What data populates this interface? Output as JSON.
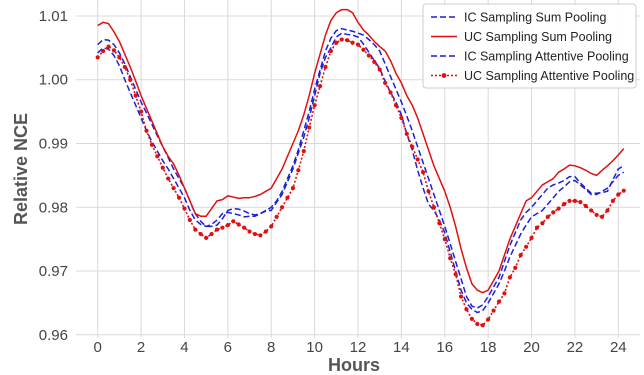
{
  "chart_data": {
    "type": "line",
    "xlabel": "Hours",
    "ylabel": "Relative NCE",
    "xlim": [
      -1,
      25
    ],
    "ylim": [
      0.9595,
      1.0125
    ],
    "x_ticks": [
      0,
      2,
      4,
      6,
      8,
      10,
      12,
      14,
      16,
      18,
      20,
      22,
      24
    ],
    "y_ticks": [
      0.96,
      0.97,
      0.98,
      0.99,
      1.0,
      1.01
    ],
    "y_tick_labels": [
      "0.96",
      "0.97",
      "0.98",
      "0.99",
      "1.00",
      "1.01"
    ],
    "grid": true,
    "legend_position": "top-right",
    "series": [
      {
        "name": "IC Sampling Sum Pooling",
        "color": "#1f1fd6",
        "style": "dashed",
        "x": [
          0,
          0.25,
          0.5,
          0.75,
          1,
          1.25,
          1.5,
          1.75,
          2,
          2.25,
          2.5,
          2.75,
          3,
          3.25,
          3.5,
          3.75,
          4,
          4.25,
          4.5,
          4.75,
          5,
          5.25,
          5.5,
          5.75,
          6,
          6.25,
          6.5,
          6.75,
          7,
          7.25,
          7.5,
          7.75,
          8,
          8.25,
          8.5,
          8.75,
          9,
          9.25,
          9.5,
          9.75,
          10,
          10.25,
          10.5,
          10.75,
          11,
          11.25,
          11.5,
          11.75,
          12,
          12.25,
          12.5,
          12.75,
          13,
          13.25,
          13.5,
          13.75,
          14,
          14.25,
          14.5,
          14.75,
          15,
          15.25,
          15.5,
          15.75,
          16,
          16.25,
          16.5,
          16.75,
          17,
          17.25,
          17.5,
          17.75,
          18,
          18.25,
          18.5,
          18.75,
          19,
          19.25,
          19.5,
          19.75,
          20,
          20.25,
          20.5,
          20.75,
          21,
          21.25,
          21.5,
          21.75,
          22,
          22.25,
          22.5,
          22.75,
          23,
          23.25,
          23.5,
          23.75,
          24,
          24.25
        ],
        "y": [
          1.0055,
          1.0063,
          1.0062,
          1.0055,
          1.0042,
          1.0025,
          1.0005,
          0.9985,
          0.9965,
          0.9948,
          0.993,
          0.9912,
          0.9895,
          0.9878,
          0.986,
          0.9845,
          0.983,
          0.981,
          0.979,
          0.9778,
          0.977,
          0.977,
          0.9772,
          0.9782,
          0.9795,
          0.9798,
          0.9797,
          0.9794,
          0.979,
          0.9788,
          0.979,
          0.9794,
          0.98,
          0.981,
          0.9825,
          0.9845,
          0.9865,
          0.989,
          0.992,
          0.995,
          0.9985,
          1.0015,
          1.0045,
          1.0065,
          1.0077,
          1.008,
          1.0078,
          1.0076,
          1.0073,
          1.007,
          1.0063,
          1.0055,
          1.0045,
          1.0025,
          1.0005,
          0.9985,
          0.9965,
          0.9943,
          0.992,
          0.9895,
          0.987,
          0.9845,
          0.982,
          0.9795,
          0.977,
          0.9743,
          0.9715,
          0.9688,
          0.966,
          0.9645,
          0.9642,
          0.9647,
          0.966,
          0.9675,
          0.969,
          0.9715,
          0.974,
          0.976,
          0.978,
          0.9792,
          0.98,
          0.981,
          0.982,
          0.983,
          0.9835,
          0.9838,
          0.9842,
          0.9848,
          0.9848,
          0.9838,
          0.983,
          0.9822,
          0.9822,
          0.9823,
          0.9825,
          0.9843,
          0.986,
          0.9865
        ]
      },
      {
        "name": "UC Sampling Sum Pooling",
        "color": "#e01010",
        "style": "solid",
        "x": [
          0,
          0.25,
          0.5,
          0.75,
          1,
          1.25,
          1.5,
          1.75,
          2,
          2.25,
          2.5,
          2.75,
          3,
          3.25,
          3.5,
          3.75,
          4,
          4.25,
          4.5,
          4.75,
          5,
          5.25,
          5.5,
          5.75,
          6,
          6.25,
          6.5,
          6.75,
          7,
          7.25,
          7.5,
          7.75,
          8,
          8.25,
          8.5,
          8.75,
          9,
          9.25,
          9.5,
          9.75,
          10,
          10.25,
          10.5,
          10.75,
          11,
          11.25,
          11.5,
          11.75,
          12,
          12.25,
          12.5,
          12.75,
          13,
          13.25,
          13.5,
          13.75,
          14,
          14.25,
          14.5,
          14.75,
          15,
          15.25,
          15.5,
          15.75,
          16,
          16.25,
          16.5,
          16.75,
          17,
          17.25,
          17.5,
          17.75,
          18,
          18.25,
          18.5,
          18.75,
          19,
          19.25,
          19.5,
          19.75,
          20,
          20.25,
          20.5,
          20.75,
          21,
          21.25,
          21.5,
          21.75,
          22,
          22.25,
          22.5,
          22.75,
          23,
          23.25,
          23.5,
          23.75,
          24,
          24.25
        ],
        "y": [
          1.0085,
          1.009,
          1.0088,
          1.0075,
          1.006,
          1.004,
          1.002,
          0.9998,
          0.9975,
          0.9955,
          0.9935,
          0.9915,
          0.9895,
          0.988,
          0.9868,
          0.985,
          0.983,
          0.981,
          0.979,
          0.9786,
          0.9786,
          0.9798,
          0.981,
          0.9812,
          0.9818,
          0.9816,
          0.9814,
          0.9815,
          0.9815,
          0.9817,
          0.982,
          0.9825,
          0.983,
          0.9845,
          0.986,
          0.988,
          0.99,
          0.992,
          0.9945,
          0.9975,
          1.001,
          1.004,
          1.007,
          1.0093,
          1.0105,
          1.011,
          1.011,
          1.0105,
          1.009,
          1.0078,
          1.007,
          1.006,
          1.0052,
          1.0045,
          1.003,
          1.001,
          0.9995,
          0.9975,
          0.996,
          0.994,
          0.9915,
          0.989,
          0.9865,
          0.9845,
          0.9825,
          0.98,
          0.977,
          0.9735,
          0.9705,
          0.968,
          0.967,
          0.9666,
          0.967,
          0.9685,
          0.97,
          0.9725,
          0.975,
          0.977,
          0.979,
          0.981,
          0.9815,
          0.9825,
          0.9835,
          0.984,
          0.9845,
          0.9855,
          0.986,
          0.9866,
          0.9865,
          0.9862,
          0.9858,
          0.9853,
          0.985,
          0.9858,
          0.9865,
          0.9873,
          0.9882,
          0.9892
        ]
      },
      {
        "name": "IC Sampling Attentive Pooling",
        "color": "#1f1fd6",
        "style": "dashed",
        "x": [
          0,
          0.25,
          0.5,
          0.75,
          1,
          1.25,
          1.5,
          1.75,
          2,
          2.25,
          2.5,
          2.75,
          3,
          3.25,
          3.5,
          3.75,
          4,
          4.25,
          4.5,
          4.75,
          5,
          5.25,
          5.5,
          5.75,
          6,
          6.25,
          6.5,
          6.75,
          7,
          7.25,
          7.5,
          7.75,
          8,
          8.25,
          8.5,
          8.75,
          9,
          9.25,
          9.5,
          9.75,
          10,
          10.25,
          10.5,
          10.75,
          11,
          11.25,
          11.5,
          11.75,
          12,
          12.25,
          12.5,
          12.75,
          13,
          13.25,
          13.5,
          13.75,
          14,
          14.25,
          14.5,
          14.75,
          15,
          15.25,
          15.5,
          15.75,
          16,
          16.25,
          16.5,
          16.75,
          17,
          17.25,
          17.5,
          17.75,
          18,
          18.25,
          18.5,
          18.75,
          19,
          19.25,
          19.5,
          19.75,
          20,
          20.25,
          20.5,
          20.75,
          21,
          21.25,
          21.5,
          21.75,
          22,
          22.25,
          22.5,
          22.75,
          23,
          23.25,
          23.5,
          23.75,
          24,
          24.25
        ],
        "y": [
          1.0042,
          1.005,
          1.0048,
          1.0038,
          1.0022,
          1.0,
          0.998,
          0.996,
          0.994,
          0.992,
          0.9903,
          0.9888,
          0.9873,
          0.986,
          0.9845,
          0.983,
          0.9815,
          0.9795,
          0.978,
          0.9773,
          0.977,
          0.9773,
          0.978,
          0.979,
          0.9792,
          0.979,
          0.9788,
          0.9785,
          0.9786,
          0.9786,
          0.979,
          0.9795,
          0.9795,
          0.9808,
          0.982,
          0.984,
          0.986,
          0.9885,
          0.991,
          0.994,
          0.9975,
          1.001,
          1.0035,
          1.005,
          1.0067,
          1.0073,
          1.0071,
          1.007,
          1.0067,
          1.0056,
          1.0043,
          1.003,
          1.0018,
          0.9998,
          0.998,
          0.9965,
          0.9945,
          0.9915,
          0.989,
          0.9858,
          0.983,
          0.9805,
          0.9795,
          0.978,
          0.976,
          0.973,
          0.97,
          0.967,
          0.965,
          0.964,
          0.9635,
          0.9638,
          0.965,
          0.9665,
          0.968,
          0.97,
          0.9722,
          0.974,
          0.9758,
          0.9772,
          0.9785,
          0.979,
          0.9795,
          0.9805,
          0.9815,
          0.9825,
          0.9832,
          0.984,
          0.9842,
          0.9835,
          0.9828,
          0.982,
          0.982,
          0.9825,
          0.983,
          0.984,
          0.985,
          0.9855
        ]
      },
      {
        "name": "UC Sampling Attentive Pooling",
        "color": "#e01010",
        "style": "dotted-markers",
        "x": [
          0,
          0.25,
          0.5,
          0.75,
          1,
          1.25,
          1.5,
          1.75,
          2,
          2.25,
          2.5,
          2.75,
          3,
          3.25,
          3.5,
          3.75,
          4,
          4.25,
          4.5,
          4.75,
          5,
          5.25,
          5.5,
          5.75,
          6,
          6.25,
          6.5,
          6.75,
          7,
          7.25,
          7.5,
          7.75,
          8,
          8.25,
          8.5,
          8.75,
          9,
          9.25,
          9.5,
          9.75,
          10,
          10.25,
          10.5,
          10.75,
          11,
          11.25,
          11.5,
          11.75,
          12,
          12.25,
          12.5,
          12.75,
          13,
          13.25,
          13.5,
          13.75,
          14,
          14.25,
          14.5,
          14.75,
          15,
          15.25,
          15.5,
          15.75,
          16,
          16.25,
          16.5,
          16.75,
          17,
          17.25,
          17.5,
          17.75,
          18,
          18.25,
          18.5,
          18.75,
          19,
          19.25,
          19.5,
          19.75,
          20,
          20.25,
          20.5,
          20.75,
          21,
          21.25,
          21.5,
          21.75,
          22,
          22.25,
          22.5,
          22.75,
          23,
          23.25,
          23.5,
          23.75,
          24,
          24.25
        ],
        "y": [
          1.0035,
          1.0045,
          1.0052,
          1.0046,
          1.0035,
          1.002,
          1.0,
          0.9975,
          0.995,
          0.992,
          0.9898,
          0.988,
          0.9862,
          0.9845,
          0.983,
          0.9815,
          0.9798,
          0.978,
          0.9765,
          0.9758,
          0.9752,
          0.9758,
          0.9765,
          0.9768,
          0.9772,
          0.9778,
          0.9773,
          0.9768,
          0.9762,
          0.9758,
          0.9756,
          0.9762,
          0.977,
          0.9785,
          0.98,
          0.9815,
          0.983,
          0.9858,
          0.9888,
          0.9925,
          0.996,
          0.999,
          1.002,
          1.0045,
          1.0058,
          1.0063,
          1.0062,
          1.0058,
          1.0055,
          1.0047,
          1.0038,
          1.0028,
          1.0016,
          0.9995,
          0.998,
          0.996,
          0.994,
          0.9915,
          0.9895,
          0.9875,
          0.9855,
          0.9825,
          0.98,
          0.9775,
          0.975,
          0.972,
          0.9695,
          0.966,
          0.964,
          0.9625,
          0.9617,
          0.9615,
          0.9624,
          0.9638,
          0.9652,
          0.9665,
          0.969,
          0.9705,
          0.9725,
          0.9738,
          0.9752,
          0.9768,
          0.9775,
          0.9785,
          0.9792,
          0.9798,
          0.9805,
          0.981,
          0.981,
          0.9808,
          0.9802,
          0.9795,
          0.9788,
          0.9785,
          0.9795,
          0.981,
          0.982,
          0.9826
        ]
      }
    ]
  }
}
